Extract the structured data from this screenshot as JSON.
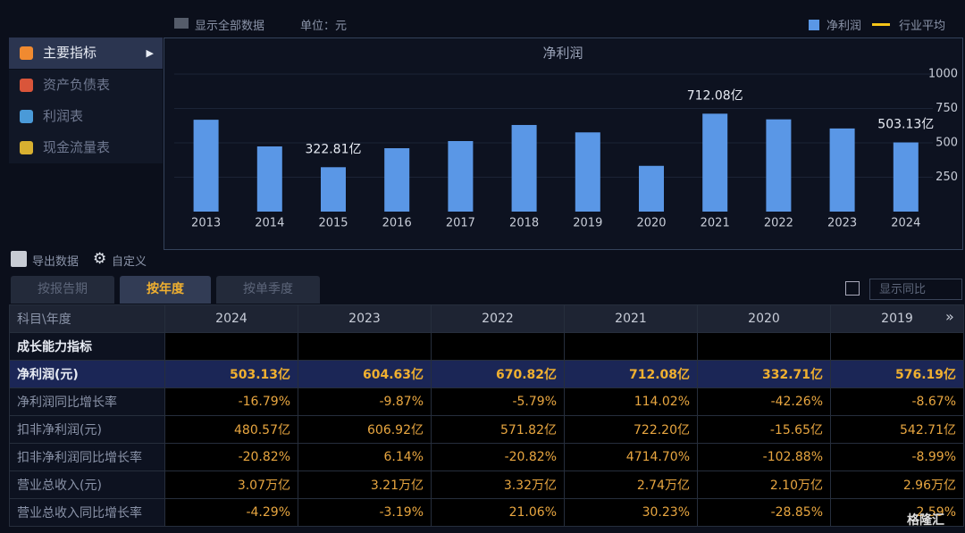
{
  "top_bar": {
    "show_all": "显示全部数据",
    "unit": "单位：元",
    "legend": [
      {
        "label": "净利润",
        "color": "#5a97e6"
      },
      {
        "label": "行业平均",
        "color": "#f5c518"
      }
    ]
  },
  "sidebar": {
    "items": [
      "主要指标",
      "资产负债表",
      "利润表",
      "现金流量表"
    ]
  },
  "chart_data": {
    "type": "bar",
    "title": "净利润",
    "categories": [
      "2013",
      "2014",
      "2015",
      "2016",
      "2017",
      "2018",
      "2019",
      "2020",
      "2021",
      "2022",
      "2023",
      "2024"
    ],
    "values": [
      668,
      474,
      322.81,
      461,
      513,
      630,
      576.19,
      332.71,
      712.08,
      670.82,
      604.63,
      503.13
    ],
    "value_labels": [
      null,
      null,
      "322.81亿",
      null,
      null,
      null,
      null,
      null,
      "712.08亿",
      null,
      null,
      "503.13亿"
    ],
    "color": "#5a97e6",
    "ylim": [
      0,
      1000
    ],
    "yticks": [
      250,
      500,
      750,
      1000
    ],
    "grid": true
  },
  "toolbar": {
    "export": "导出数据",
    "customize": "自定义",
    "show_yoy": "显示同比"
  },
  "tabs": [
    "按报告期",
    "按年度",
    "按单季度"
  ],
  "table": {
    "header": [
      "科目\\年度",
      "2024",
      "2023",
      "2022",
      "2021",
      "2020",
      "2019"
    ],
    "rows": [
      [
        "成长能力指标"
      ],
      [
        "净利润(元)",
        "503.13亿",
        "604.63亿",
        "670.82亿",
        "712.08亿",
        "332.71亿",
        "576.19亿"
      ],
      [
        "净利润同比增长率",
        "-16.79%",
        "-9.87%",
        "-5.79%",
        "114.02%",
        "-42.26%",
        "-8.67%"
      ],
      [
        "扣非净利润(元)",
        "480.57亿",
        "606.92亿",
        "571.82亿",
        "722.20亿",
        "-15.65亿",
        "542.71亿"
      ],
      [
        "扣非净利润同比增长率",
        "-20.82%",
        "6.14%",
        "-20.82%",
        "4714.70%",
        "-102.88%",
        "-8.99%"
      ],
      [
        "营业总收入(元)",
        "3.07万亿",
        "3.21万亿",
        "3.32万亿",
        "2.74万亿",
        "2.10万亿",
        "2.96万亿"
      ],
      [
        "营业总收入同比增长率",
        "-4.29%",
        "-3.19%",
        "21.06%",
        "30.23%",
        "-28.85%",
        "2.59%"
      ]
    ]
  },
  "watermark": "格隆汇"
}
